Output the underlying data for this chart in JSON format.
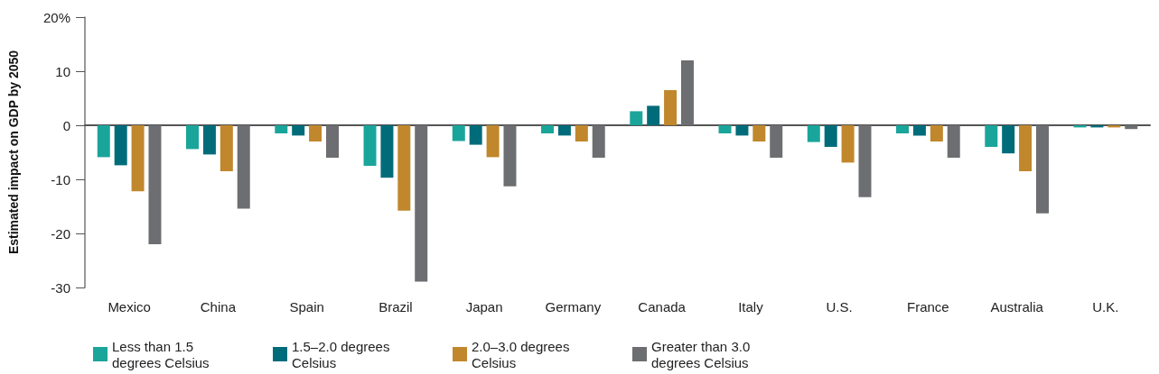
{
  "chart_data": {
    "type": "bar",
    "ylabel": "Estimated impact on GDP by 2050",
    "categories": [
      "Mexico",
      "China",
      "Spain",
      "Brazil",
      "Japan",
      "Germany",
      "Canada",
      "Italy",
      "U.S.",
      "France",
      "Australia",
      "U.K."
    ],
    "series": [
      {
        "name": "Less than 1.5 degrees Celsius",
        "color": "#1aa59b",
        "values": [
          -5.9,
          -4.4,
          -1.5,
          -7.5,
          -2.9,
          -1.5,
          2.6,
          -1.5,
          -3.1,
          -1.5,
          -4,
          -0.4
        ]
      },
      {
        "name": "1.5–2.0 degrees Celsius",
        "color": "#006c7a",
        "values": [
          -7.4,
          -5.4,
          -1.9,
          -9.7,
          -3.6,
          -1.9,
          3.6,
          -1.9,
          -4,
          -1.9,
          -5.2,
          -0.4
        ]
      },
      {
        "name": "2.0–3.0 degrees Celsius",
        "color": "#c0872c",
        "values": [
          -12.2,
          -8.5,
          -3,
          -15.8,
          -5.9,
          -3,
          6.5,
          -3,
          -6.9,
          -3,
          -8.5,
          -0.4
        ]
      },
      {
        "name": "Greater than 3.0 degrees Celsius",
        "color": "#6d6e71",
        "values": [
          -22,
          -15.4,
          -6,
          -28.9,
          -11.3,
          -6,
          12,
          -6,
          -13.3,
          -6,
          -16.3,
          -0.7
        ]
      }
    ],
    "ylim": [
      -30,
      20
    ],
    "yticks": [
      -30,
      -20,
      -10,
      0,
      10,
      {
        "value": 20,
        "label": "20%"
      }
    ],
    "legend": "bottom left"
  }
}
